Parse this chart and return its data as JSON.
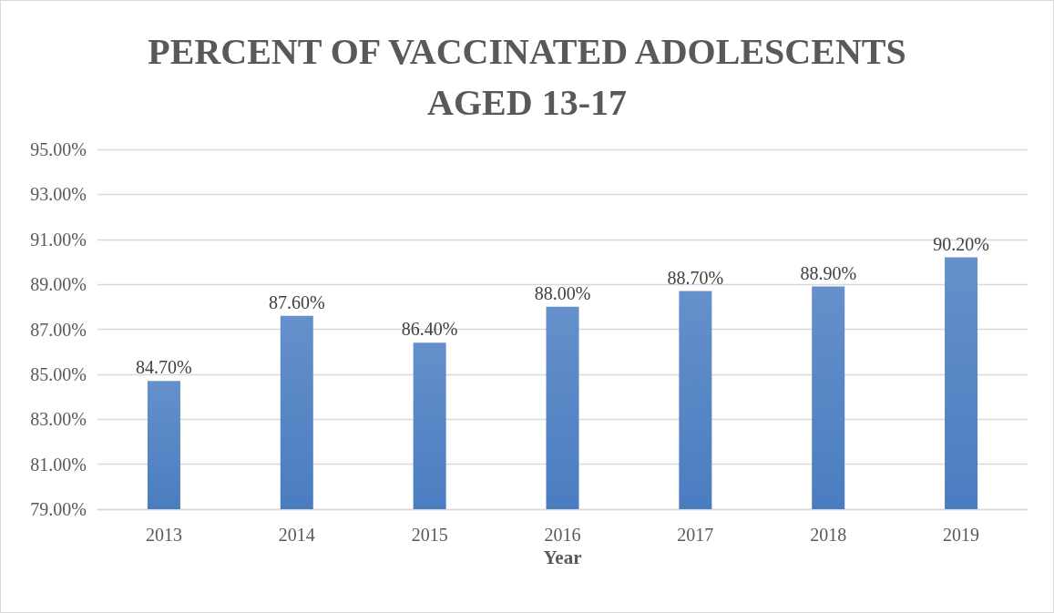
{
  "chart_data": {
    "type": "bar",
    "title": "PERCENT OF VACCINATED ADOLESCENTS\nAGED 13-17",
    "xlabel": "Year",
    "categories": [
      "2013",
      "2014",
      "2015",
      "2016",
      "2017",
      "2018",
      "2019"
    ],
    "values": [
      84.7,
      87.6,
      86.4,
      88.0,
      88.7,
      88.9,
      90.2
    ],
    "value_labels": [
      "84.70%",
      "87.60%",
      "86.40%",
      "88.00%",
      "88.70%",
      "88.90%",
      "90.20%"
    ],
    "color": "#4a7dc0",
    "ylim": [
      79,
      95
    ],
    "yticks": [
      {
        "value": 79,
        "label": "79.00%"
      },
      {
        "value": 81,
        "label": "81.00%"
      },
      {
        "value": 83,
        "label": "83.00%"
      },
      {
        "value": 85,
        "label": "85.00%"
      },
      {
        "value": 87,
        "label": "87.00%"
      },
      {
        "value": 89,
        "label": "89.00%"
      },
      {
        "value": 91,
        "label": "91.00%"
      },
      {
        "value": 93,
        "label": "93.00%"
      },
      {
        "value": 95,
        "label": "95.00%"
      }
    ],
    "grid": "y"
  }
}
